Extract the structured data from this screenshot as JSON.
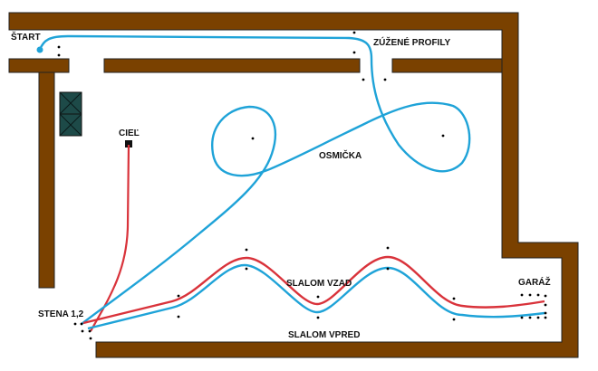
{
  "labels": {
    "start": "ŠTART",
    "narrow_profiles": "ZÚŽENÉ PROFILY",
    "finish": "CIEĽ",
    "figure_eight": "OSMIČKA",
    "slalom_reverse": "SLALOM VZAD",
    "slalom_forward": "SLALOM VPRED",
    "wall": "STENA 1,2",
    "garage": "GARÁŽ"
  },
  "colors": {
    "wall": "#7a4100",
    "forward_path": "#1fa3d8",
    "reverse_path": "#d9333b",
    "obstacle": "#1d4a48"
  }
}
